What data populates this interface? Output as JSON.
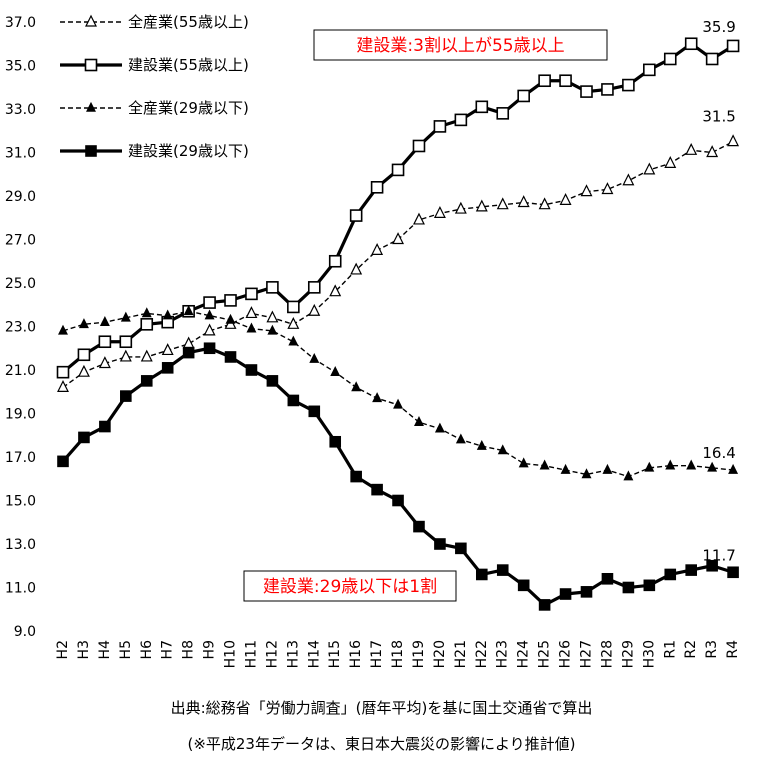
{
  "chart_data": {
    "type": "line",
    "categories": [
      "H2",
      "H3",
      "H4",
      "H5",
      "H6",
      "H7",
      "H8",
      "H9",
      "H10",
      "H11",
      "H12",
      "H13",
      "H14",
      "H15",
      "H16",
      "H17",
      "H18",
      "H19",
      "H20",
      "H21",
      "H22",
      "H23",
      "H24",
      "H25",
      "H26",
      "H27",
      "H28",
      "H29",
      "H30",
      "R1",
      "R2",
      "R3",
      "R4"
    ],
    "y_ticks": [
      "9.0",
      "11.0",
      "13.0",
      "15.0",
      "17.0",
      "19.0",
      "21.0",
      "23.0",
      "25.0",
      "27.0",
      "29.0",
      "31.0",
      "33.0",
      "35.0",
      "37.0"
    ],
    "ylim": [
      9,
      37
    ],
    "grid": false,
    "legend_position": "top-left",
    "series": [
      {
        "name": "全産業(55歳以上)",
        "style": "dashed",
        "marker": "open-triangle",
        "values": [
          20.2,
          20.9,
          21.3,
          21.6,
          21.6,
          21.9,
          22.2,
          22.8,
          23.1,
          23.6,
          23.4,
          23.1,
          23.7,
          24.6,
          25.6,
          26.5,
          27.0,
          27.9,
          28.2,
          28.4,
          28.5,
          28.6,
          28.7,
          28.6,
          28.8,
          29.2,
          29.3,
          29.7,
          30.2,
          30.5,
          31.1,
          31.0,
          31.5
        ]
      },
      {
        "name": "建設業(55歳以上)",
        "style": "solid",
        "marker": "open-square",
        "values": [
          20.9,
          21.7,
          22.3,
          22.3,
          23.1,
          23.2,
          23.7,
          24.1,
          24.2,
          24.5,
          24.8,
          23.9,
          24.8,
          26.0,
          28.1,
          29.4,
          30.2,
          31.3,
          32.2,
          32.5,
          33.1,
          32.8,
          33.6,
          34.3,
          34.3,
          33.8,
          33.9,
          34.1,
          34.8,
          35.3,
          36.0,
          35.3,
          35.9
        ]
      },
      {
        "name": "全産業(29歳以下)",
        "style": "dashed",
        "marker": "filled-triangle",
        "values": [
          22.8,
          23.1,
          23.2,
          23.4,
          23.6,
          23.5,
          23.7,
          23.5,
          23.3,
          22.9,
          22.8,
          22.3,
          21.5,
          20.9,
          20.2,
          19.7,
          19.4,
          18.6,
          18.3,
          17.8,
          17.5,
          17.3,
          16.7,
          16.6,
          16.4,
          16.2,
          16.4,
          16.1,
          16.5,
          16.6,
          16.6,
          16.5,
          16.4
        ]
      },
      {
        "name": "建設業(29歳以下)",
        "style": "solid",
        "marker": "filled-square",
        "values": [
          16.8,
          17.9,
          18.4,
          19.8,
          20.5,
          21.1,
          21.8,
          22.0,
          21.6,
          21.0,
          20.5,
          19.6,
          19.1,
          17.7,
          16.1,
          15.5,
          15.0,
          13.8,
          13.0,
          12.8,
          11.6,
          11.8,
          11.1,
          10.2,
          10.7,
          10.8,
          11.4,
          11.0,
          11.1,
          11.6,
          11.8,
          12.0,
          11.7
        ]
      }
    ],
    "end_labels": [
      "31.5",
      "35.9",
      "16.4",
      "11.7"
    ],
    "annotations": [
      {
        "text": "建設業:3割以上が55歳以上",
        "color": "#ff0000"
      },
      {
        "text": "建設業:29歳以下は1割",
        "color": "#ff0000"
      }
    ]
  },
  "footer": {
    "source": "出典:総務省「労働力調査」(暦年平均)を基に国土交通省で算出",
    "note": "(※平成23年データは、東日本大震災の影響により推計値)"
  }
}
